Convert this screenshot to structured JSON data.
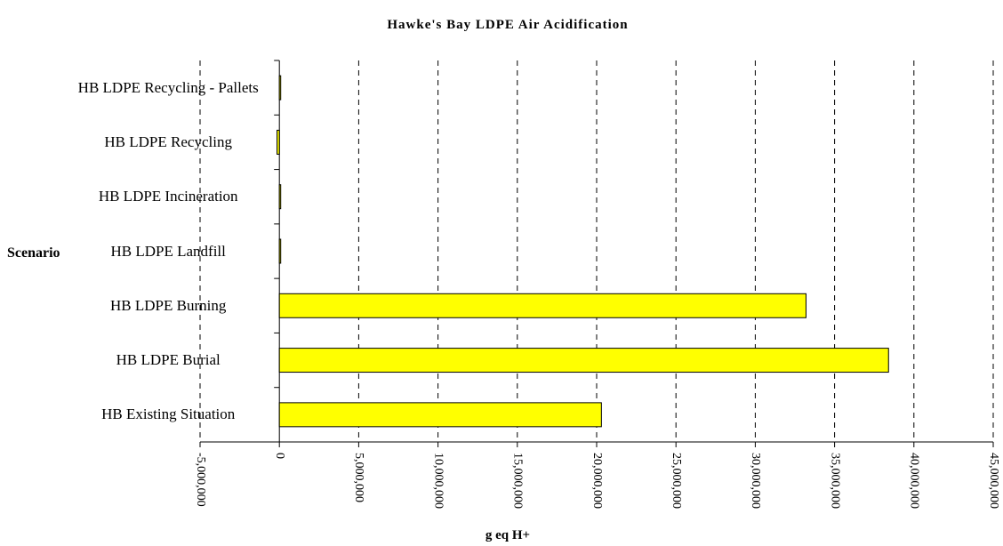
{
  "chart_data": {
    "type": "bar",
    "orientation": "horizontal",
    "title": "Hawke's Bay LDPE Air Acidification",
    "x_label": "g eq H+",
    "y_label": "Scenario",
    "categories": [
      "HB LDPE Recycling - Pallets",
      "HB LDPE Recycling",
      "HB LDPE Incineration",
      "HB LDPE Landfill",
      "HB LDPE Burning",
      "HB LDPE Burial",
      "HB Existing Situation"
    ],
    "values": [
      50000,
      -150000,
      50000,
      50000,
      33200000,
      38400000,
      20300000
    ],
    "color": "#ffff00",
    "xlim": [
      -5000000,
      45000000
    ],
    "xticks": [
      {
        "value": -5000000,
        "label": "-5,000,000"
      },
      0,
      {
        "value": 5000000,
        "label": "5,000,000"
      },
      {
        "value": 10000000,
        "label": "10,000,000"
      },
      {
        "value": 15000000,
        "label": "15,000,000"
      },
      {
        "value": 20000000,
        "label": "20,000,000"
      },
      {
        "value": 25000000,
        "label": "25,000,000"
      },
      {
        "value": 30000000,
        "label": "30,000,000"
      },
      {
        "value": 35000000,
        "label": "35,000,000"
      },
      {
        "value": 40000000,
        "label": "40,000,000"
      },
      {
        "value": 45000000,
        "label": "45,000,000"
      }
    ],
    "grid": true
  }
}
